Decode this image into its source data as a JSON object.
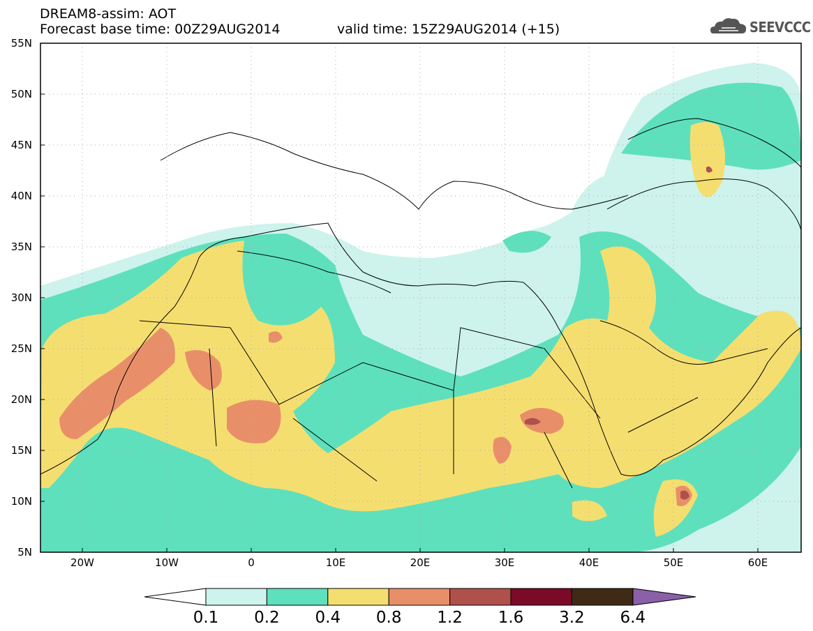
{
  "header": {
    "title_line1": "DREAM8-assim: AOT",
    "title_line2": "Forecast base time: 00Z29AUG2014",
    "valid_time": "valid time: 15Z29AUG2014 (+15)",
    "logo_text": "SEEVCCC"
  },
  "map": {
    "lat_labels": [
      "55N",
      "50N",
      "45N",
      "40N",
      "35N",
      "30N",
      "25N",
      "20N",
      "15N",
      "10N",
      "5N"
    ],
    "lon_labels": [
      "20W",
      "10W",
      "0",
      "10E",
      "20E",
      "30E",
      "40E",
      "50E",
      "60E"
    ],
    "lon_range": [
      -25,
      65
    ],
    "lat_range": [
      5,
      55
    ]
  },
  "colorbar": {
    "levels": [
      "0.1",
      "0.2",
      "0.4",
      "0.8",
      "1.2",
      "1.6",
      "3.2",
      "6.4"
    ],
    "colors": [
      "#cdf3ec",
      "#5ee0bd",
      "#f5de70",
      "#e88f6a",
      "#b0504a",
      "#7a0a27",
      "#3f2a15",
      "#8a60a8"
    ]
  }
}
